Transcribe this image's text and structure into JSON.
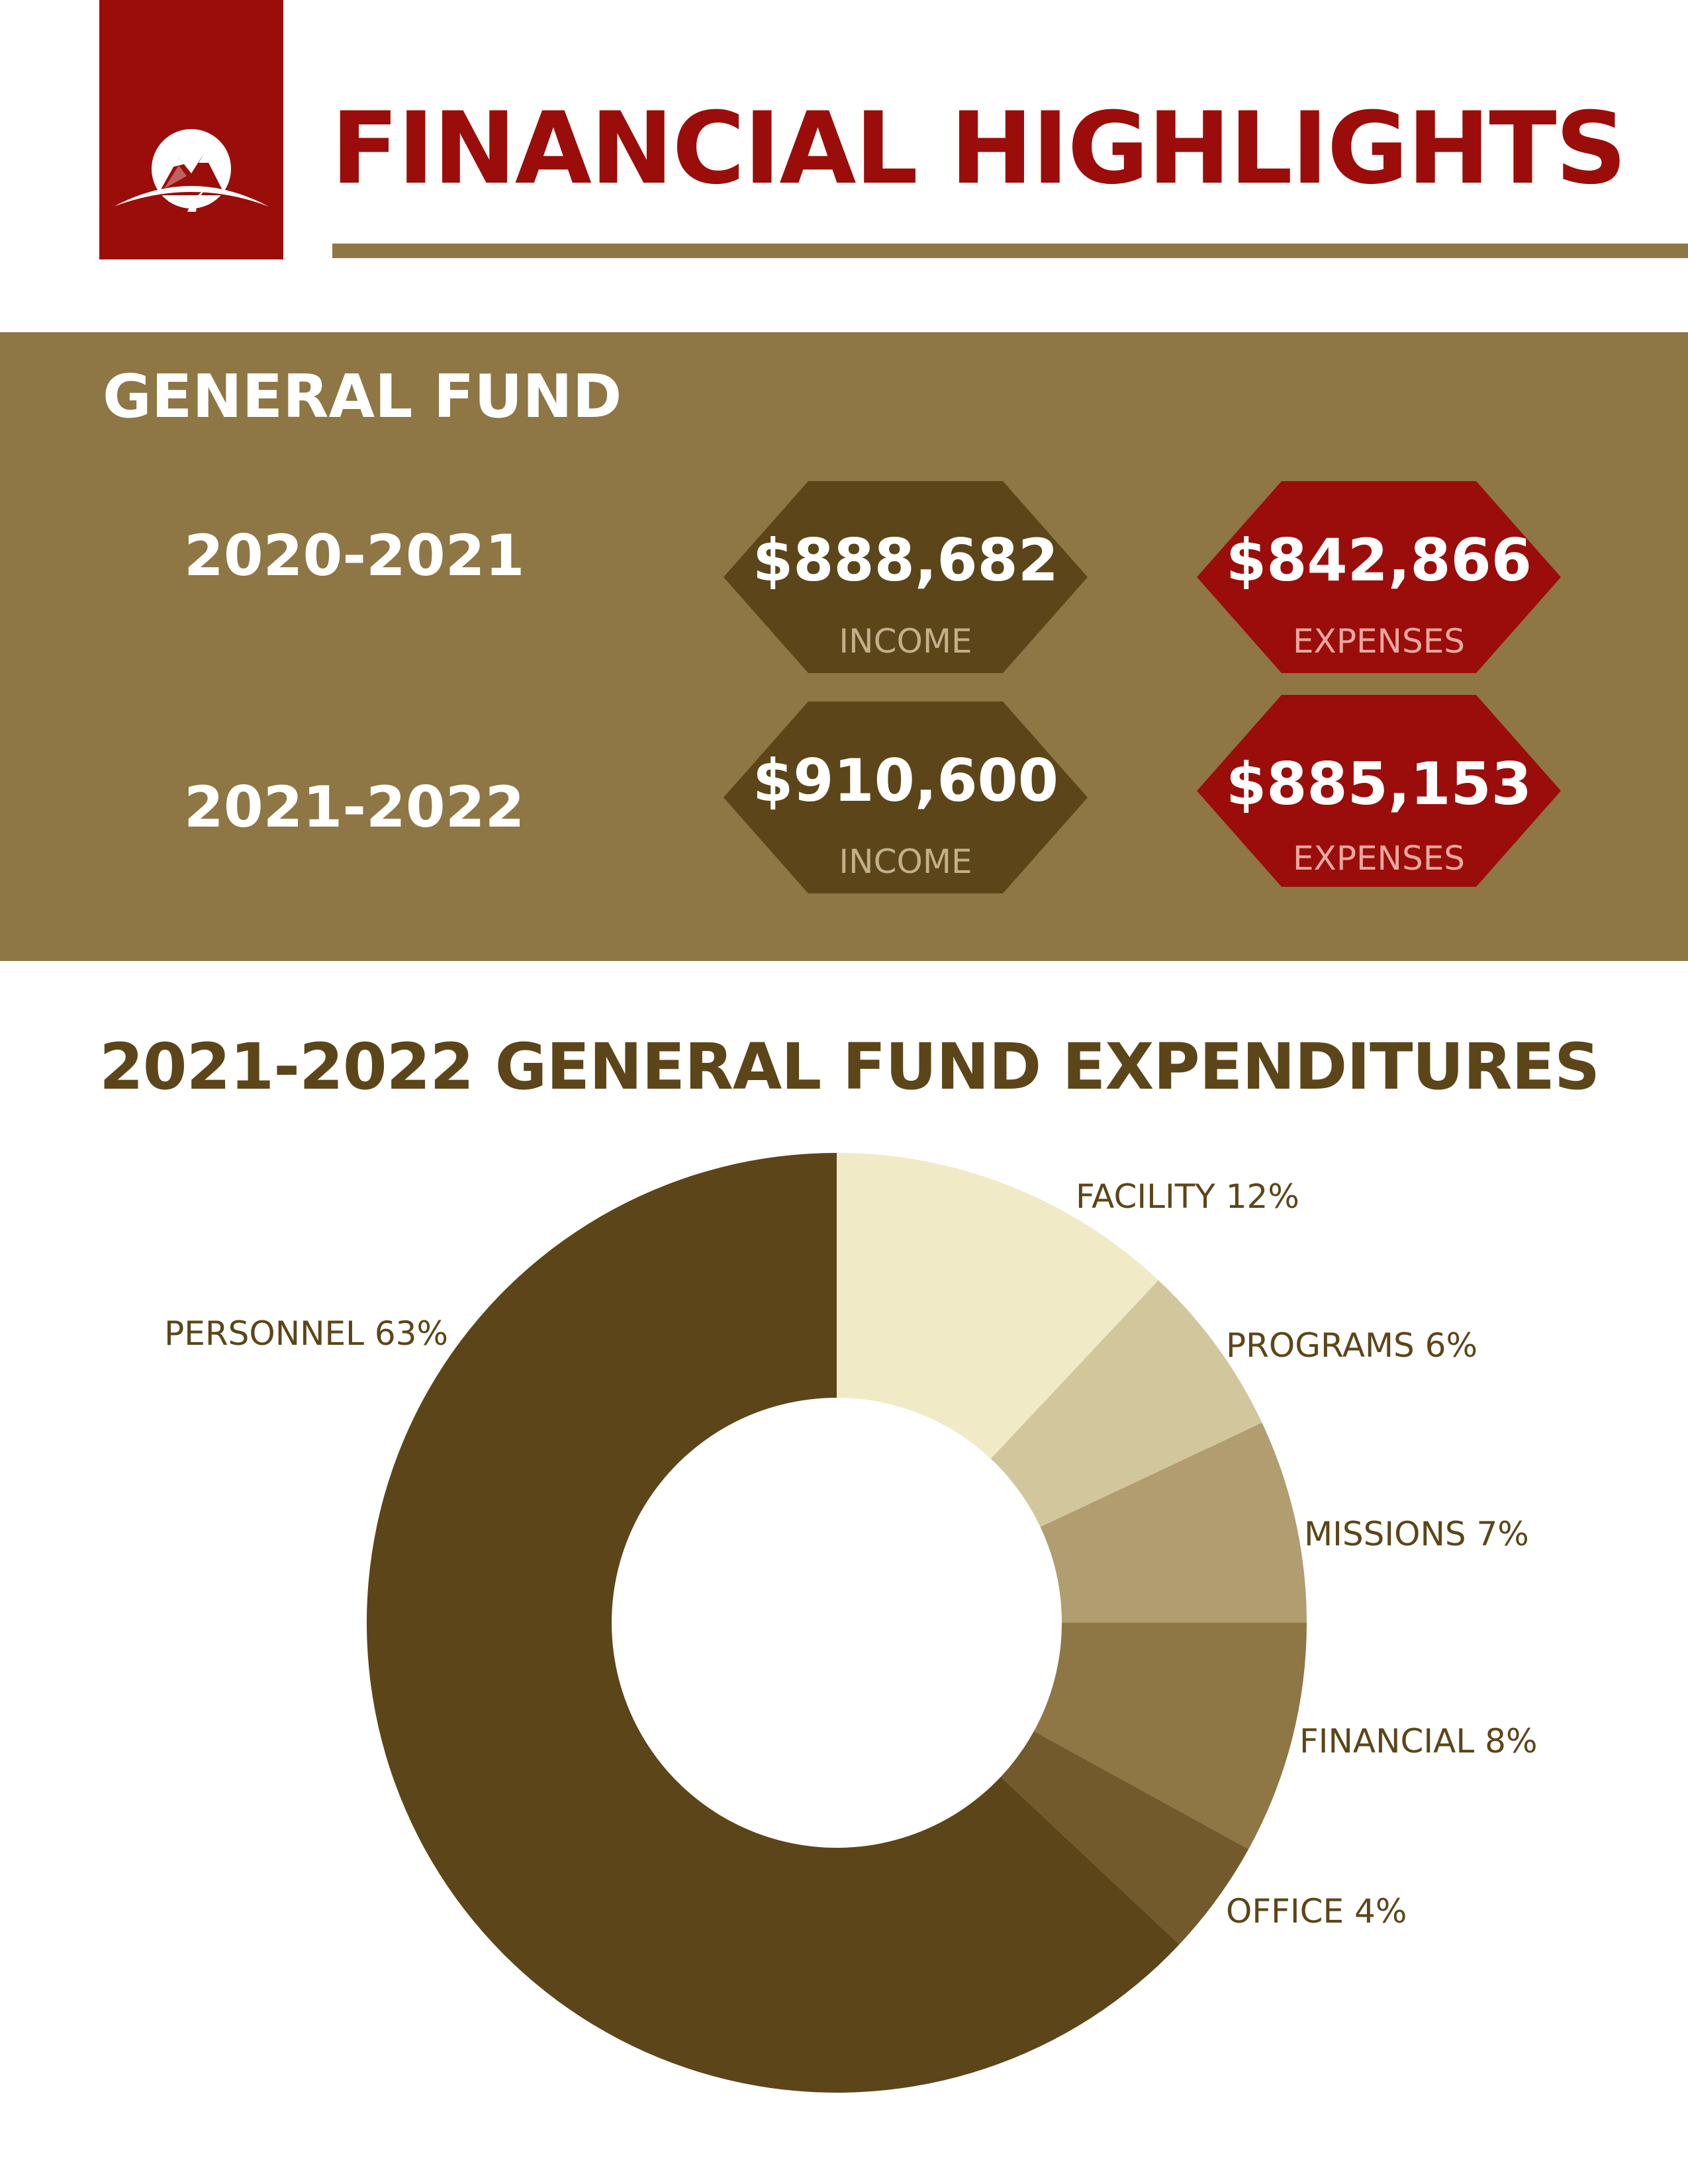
{
  "header": {
    "title": "FINANCIAL HIGHLIGHTS",
    "logo_icon": "mountain-logo-icon"
  },
  "general_fund": {
    "title": "GENERAL FUND",
    "years": [
      {
        "label": "2020-2021",
        "income": {
          "amount": "$888,682",
          "caption": "INCOME"
        },
        "expenses": {
          "amount": "$842,866",
          "caption": "EXPENSES"
        }
      },
      {
        "label": "2021-2022",
        "income": {
          "amount": "$910,600",
          "caption": "INCOME"
        },
        "expenses": {
          "amount": "$885,153",
          "caption": "EXPENSES"
        }
      }
    ]
  },
  "colors": {
    "brand_red": "#9b0d0a",
    "gold": "#8e7645",
    "dark_brown": "#5c4518"
  },
  "chart_data": {
    "type": "pie",
    "donut": true,
    "title": "2021-2022 GENERAL FUND EXPENDITURES",
    "slices": [
      {
        "label": "FACILITY 12%",
        "category": "FACILITY",
        "value": 12,
        "color": "#f0eac7"
      },
      {
        "label": "PROGRAMS 6%",
        "category": "PROGRAMS",
        "value": 6,
        "color": "#d2c69c"
      },
      {
        "label": "MISSIONS 7%",
        "category": "MISSIONS",
        "value": 7,
        "color": "#b19d6f"
      },
      {
        "label": "FINANCIAL 8%",
        "category": "FINANCIAL",
        "value": 8,
        "color": "#8e7645"
      },
      {
        "label": "OFFICE 4%",
        "category": "OFFICE",
        "value": 4,
        "color": "#725a2c"
      },
      {
        "label": "PERSONNEL 63%",
        "category": "PERSONNEL",
        "value": 63,
        "color": "#5c4518"
      }
    ],
    "legend": "labels beside slices"
  }
}
